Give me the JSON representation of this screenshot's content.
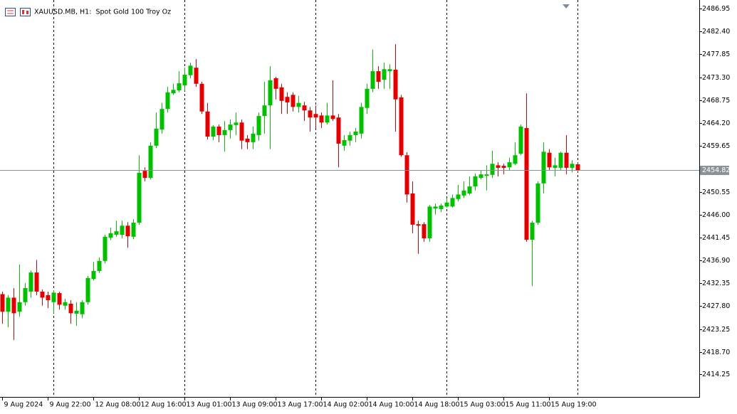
{
  "chart_data": {
    "type": "candlestick",
    "title": "XAUUSD.MB, H1:  Spot Gold 100 Troy Oz",
    "categories": [
      "9 Aug 2024",
      null,
      null,
      null,
      null,
      null,
      null,
      null,
      "9 Aug 22:00",
      null,
      null,
      null,
      null,
      null,
      null,
      null,
      "12 Aug 08:00",
      null,
      null,
      null,
      null,
      null,
      null,
      null,
      "12 Aug 16:00",
      null,
      null,
      null,
      null,
      null,
      null,
      null,
      "13 Aug 01:00",
      null,
      null,
      null,
      null,
      null,
      null,
      null,
      "13 Aug 09:00",
      null,
      null,
      null,
      null,
      null,
      null,
      null,
      "13 Aug 17:00",
      null,
      null,
      null,
      null,
      null,
      null,
      null,
      "14 Aug 02:00",
      null,
      null,
      null,
      null,
      null,
      null,
      null,
      "14 Aug 10:00",
      null,
      null,
      null,
      null,
      null,
      null,
      null,
      "14 Aug 18:00",
      null,
      null,
      null,
      null,
      null,
      null,
      null,
      "15 Aug 03:00",
      null,
      null,
      null,
      null,
      null,
      null,
      null,
      "15 Aug 11:00",
      null,
      null,
      null,
      null,
      null,
      null,
      null,
      "15 Aug 19:00",
      null,
      null,
      null,
      null,
      null
    ],
    "open": [
      2430.2,
      2426.7,
      2429.5,
      2426.7,
      2428.6,
      2430.7,
      2434.5,
      2430.7,
      2430.0,
      2428.6,
      2430.4,
      2427.9,
      2428.3,
      2426.3,
      2426.2,
      2428.6,
      2433.2,
      2434.8,
      2436.8,
      2441.4,
      2442.0,
      2442.0,
      2443.8,
      2441.6,
      2444.4,
      2454.7,
      2453.3,
      2459.7,
      2462.9,
      2467.0,
      2470.1,
      2470.7,
      2471.7,
      2473.7,
      2475.2,
      2472.0,
      2466.5,
      2461.5,
      2463.5,
      2461.8,
      2462.8,
      2463.8,
      2464.3,
      2461.1,
      2460.4,
      2461.8,
      2465.6,
      2467.7,
      2473.1,
      2471.3,
      2469.4,
      2469.8,
      2467.4,
      2467.7,
      2466.7,
      2466.0,
      2465.7,
      2464.3,
      2465.7,
      2465.3,
      2459.7,
      2460.7,
      2461.8,
      2462.1,
      2467.2,
      2471.0,
      2474.5,
      2472.8,
      2474.5,
      2474.8,
      2469.3,
      2457.8,
      2450.2,
      2444.1,
      2444.1,
      2441.3,
      2447.2,
      2447.1,
      2447.6,
      2447.6,
      2449.1,
      2449.8,
      2450.2,
      2451.6,
      2453.3,
      2453.7,
      2453.9,
      2455.8,
      2455.7,
      2455.4,
      2456.1,
      2458.1,
      2463.2,
      2441.0,
      2444.4,
      2452.2,
      2458.3,
      2455.3,
      2455.3,
      2458.3,
      2455.3,
      2456.0
    ],
    "high": [
      2430.7,
      2430.0,
      2431.4,
      2436.1,
      2432.4,
      2434.9,
      2437.0,
      2431.1,
      2430.7,
      2431.0,
      2430.7,
      2429.3,
      2429.0,
      2428.6,
      2429.0,
      2433.8,
      2436.6,
      2437.5,
      2442.0,
      2443.4,
      2444.8,
      2444.8,
      2444.5,
      2445.1,
      2457.8,
      2455.4,
      2460.4,
      2466.3,
      2468.2,
      2471.4,
      2472.0,
      2474.5,
      2475.2,
      2476.2,
      2476.9,
      2472.4,
      2468.2,
      2463.8,
      2463.9,
      2464.6,
      2464.9,
      2466.3,
      2464.9,
      2461.8,
      2463.5,
      2466.3,
      2472.4,
      2475.5,
      2473.4,
      2472.0,
      2470.3,
      2470.3,
      2469.6,
      2468.4,
      2467.4,
      2467.7,
      2466.3,
      2468.2,
      2472.7,
      2466.0,
      2461.8,
      2462.5,
      2463.2,
      2468.2,
      2472.0,
      2478.8,
      2475.5,
      2476.2,
      2475.9,
      2479.9,
      2469.8,
      2458.4,
      2452.6,
      2444.8,
      2444.5,
      2447.9,
      2448.2,
      2448.2,
      2449.3,
      2450.0,
      2451.9,
      2452.6,
      2453.6,
      2454.2,
      2454.7,
      2455.8,
      2458.7,
      2456.4,
      2456.1,
      2457.3,
      2460.4,
      2463.9,
      2470.1,
      2444.8,
      2452.6,
      2460.4,
      2459.0,
      2457.3,
      2458.5,
      2461.8,
      2456.8,
      2456.4
    ],
    "low": [
      2424.3,
      2423.6,
      2421.1,
      2425.7,
      2427.9,
      2429.5,
      2430.0,
      2427.9,
      2427.4,
      2426.4,
      2427.1,
      2427.1,
      2424.3,
      2423.9,
      2425.4,
      2428.1,
      2432.9,
      2434.4,
      2436.3,
      2440.9,
      2441.6,
      2441.3,
      2439.4,
      2441.1,
      2444.0,
      2452.6,
      2453.0,
      2459.2,
      2462.1,
      2466.3,
      2469.8,
      2470.3,
      2470.6,
      2473.1,
      2471.4,
      2466.0,
      2460.9,
      2460.8,
      2460.4,
      2458.5,
      2461.1,
      2461.8,
      2459.0,
      2459.0,
      2459.0,
      2460.7,
      2462.1,
      2459.0,
      2468.9,
      2466.0,
      2466.0,
      2466.5,
      2466.3,
      2464.6,
      2462.5,
      2463.2,
      2463.2,
      2463.9,
      2464.6,
      2455.4,
      2458.7,
      2459.7,
      2460.4,
      2461.1,
      2466.0,
      2470.3,
      2471.0,
      2471.0,
      2471.0,
      2462.5,
      2457.5,
      2448.4,
      2442.3,
      2438.2,
      2440.6,
      2440.6,
      2446.0,
      2446.5,
      2447.4,
      2447.4,
      2448.6,
      2449.3,
      2449.9,
      2450.8,
      2453.0,
      2450.8,
      2453.3,
      2453.6,
      2454.0,
      2454.7,
      2455.8,
      2457.8,
      2440.6,
      2431.8,
      2444.0,
      2450.2,
      2454.7,
      2453.6,
      2454.7,
      2454.0,
      2454.4,
      2454.4
    ],
    "close": [
      2426.7,
      2429.5,
      2426.4,
      2428.6,
      2431.4,
      2434.5,
      2430.7,
      2429.5,
      2429.0,
      2430.5,
      2428.1,
      2428.6,
      2426.4,
      2426.9,
      2428.6,
      2433.4,
      2434.8,
      2436.8,
      2441.6,
      2442.3,
      2442.7,
      2443.8,
      2441.7,
      2444.4,
      2454.3,
      2453.3,
      2459.7,
      2463.1,
      2467.0,
      2470.3,
      2470.8,
      2472.1,
      2473.8,
      2475.6,
      2472.0,
      2466.5,
      2461.5,
      2463.5,
      2461.8,
      2462.8,
      2463.9,
      2464.3,
      2460.7,
      2460.4,
      2462.1,
      2465.6,
      2467.7,
      2472.7,
      2471.0,
      2468.6,
      2468.3,
      2467.4,
      2468.2,
      2466.7,
      2465.3,
      2465.3,
      2464.3,
      2465.7,
      2465.0,
      2460.1,
      2460.8,
      2461.8,
      2462.5,
      2467.4,
      2471.0,
      2474.5,
      2472.4,
      2474.9,
      2474.9,
      2468.9,
      2457.8,
      2450.0,
      2444.0,
      2443.8,
      2441.3,
      2447.6,
      2447.6,
      2447.8,
      2448.4,
      2449.3,
      2450.0,
      2450.8,
      2451.6,
      2453.6,
      2454.0,
      2454.0,
      2456.1,
      2455.3,
      2455.3,
      2456.4,
      2457.8,
      2463.5,
      2441.0,
      2444.4,
      2452.2,
      2458.5,
      2455.4,
      2455.8,
      2458.3,
      2455.3,
      2456.1,
      2454.82
    ],
    "up_color": "#00c000",
    "down_color": "#e00000",
    "last_price": 2454.82,
    "ylim": [
      2409.77,
      2488.65
    ],
    "yticks": [
      2486.95,
      {
        "value": 2482.4,
        "label": "2482.40"
      },
      2477.85,
      {
        "value": 2473.3,
        "label": "2473.30"
      },
      2468.75,
      {
        "value": 2464.2,
        "label": "2464.20"
      },
      2459.65,
      2450.55,
      {
        "value": 2446.0,
        "label": "2446.00"
      },
      2441.45,
      {
        "value": 2436.9,
        "label": "2436.90"
      },
      2432.35,
      {
        "value": 2427.8,
        "label": "2427.80"
      },
      2423.25,
      {
        "value": 2418.7,
        "label": "2418.70"
      },
      2414.25
    ]
  }
}
